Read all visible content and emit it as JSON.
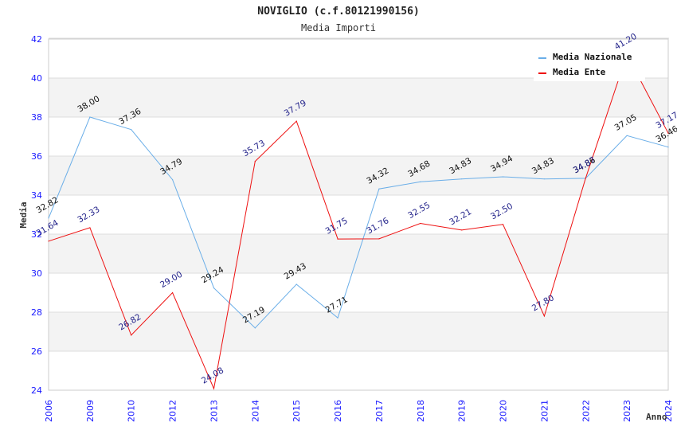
{
  "chart_data": {
    "type": "line",
    "title": "NOVIGLIO (c.f.80121990156)",
    "subtitle": "Media Importi",
    "xlabel": "Anno",
    "ylabel": "Media",
    "ylim": [
      24,
      42
    ],
    "yticks": [
      "24",
      "26",
      "28",
      "30",
      "32",
      "34",
      "36",
      "38",
      "40",
      "42"
    ],
    "categories": [
      "2006",
      "2009",
      "2010",
      "2012",
      "2013",
      "2014",
      "2015",
      "2016",
      "2017",
      "2018",
      "2019",
      "2020",
      "2021",
      "2022",
      "2023",
      "2024"
    ],
    "grid": true,
    "legend_position": "top-right",
    "series": [
      {
        "name": "Media Nazionale",
        "color": "#6aaee8",
        "values": [
          32.82,
          38.0,
          37.36,
          34.79,
          29.24,
          27.19,
          29.43,
          27.71,
          34.32,
          34.68,
          34.83,
          34.94,
          34.83,
          34.86,
          37.05,
          36.46
        ],
        "labels": [
          "32.82",
          "38.00",
          "37.36",
          "34.79",
          "29.24",
          "27.19",
          "29.43",
          "27.71",
          "34.32",
          "34.68",
          "34.83",
          "34.94",
          "34.83",
          "34.86",
          "37.05",
          "36.46"
        ]
      },
      {
        "name": "Media Ente",
        "color": "#ee1111",
        "values": [
          31.64,
          32.33,
          26.82,
          29.0,
          24.08,
          35.73,
          37.79,
          31.75,
          31.76,
          32.55,
          32.21,
          32.5,
          27.8,
          34.87,
          41.2,
          37.17
        ],
        "labels": [
          "31.64",
          "32.33",
          "26.82",
          "29.00",
          "24.08",
          "35.73",
          "37.79",
          "31.75",
          "31.76",
          "32.55",
          "32.21",
          "32.50",
          "27.80",
          "34.87",
          "41.20",
          "37.17"
        ]
      }
    ]
  }
}
